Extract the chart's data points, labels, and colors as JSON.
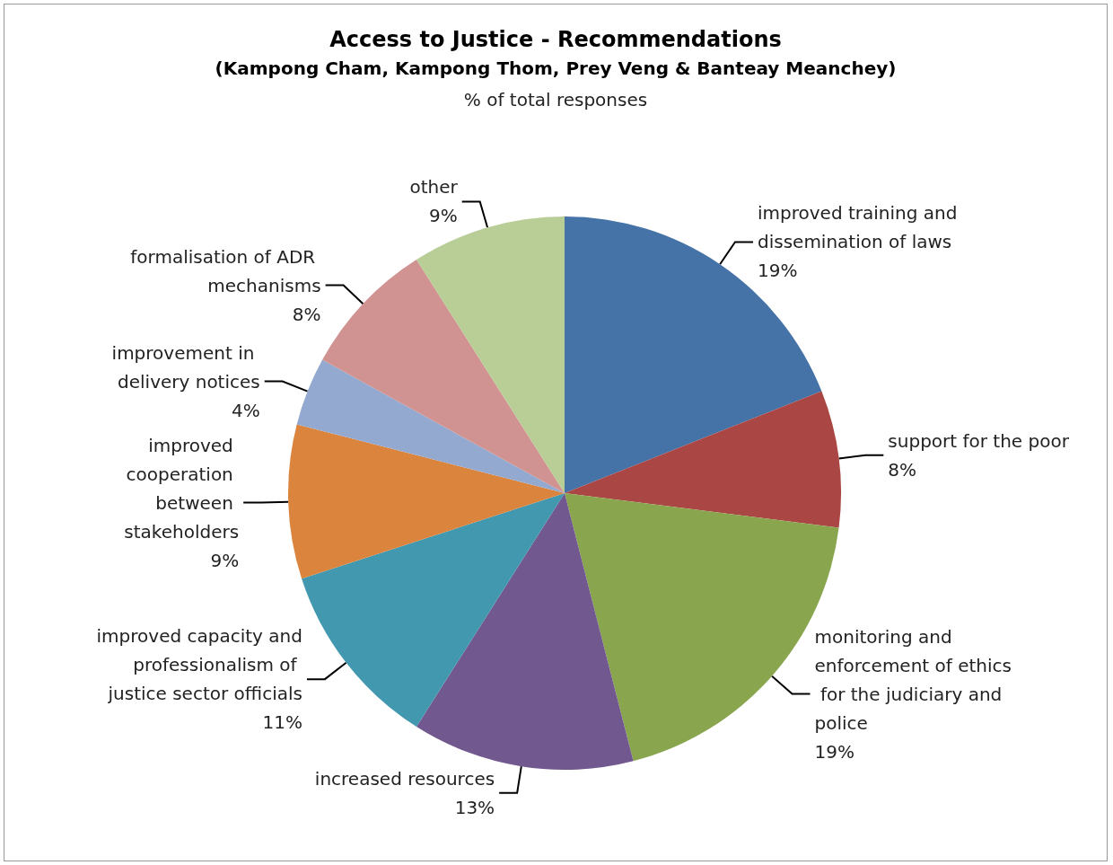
{
  "chart_data": {
    "type": "pie",
    "title": "Access to Justice - Recommendations",
    "subtitle": "(Kampong Cham, Kampong Thom, Prey Veng & Banteay Meanchey)",
    "annotations": [
      "% of total responses"
    ],
    "categories": [
      "improved training and dissemination of laws",
      "support for the poor",
      "monitoring and enforcement of ethics for the judiciary and police",
      "increased resources",
      "improved capacity and professionalism of justice sector officials",
      "improved cooperation between stakeholders",
      "improvement in delivery notices",
      "formalisation of ADR mechanisms",
      "other"
    ],
    "values": [
      19,
      8,
      19,
      13,
      11,
      9,
      4,
      8,
      9
    ],
    "value_labels": [
      "19%",
      "8%",
      "19%",
      "13%",
      "11%",
      "9%",
      "4%",
      "8%",
      "9%"
    ],
    "colors": [
      "#4572a7",
      "#aa4643",
      "#89a54e",
      "#71588f",
      "#4198af",
      "#db843d",
      "#93a9cf",
      "#d19392",
      "#b9cd96"
    ],
    "legend": false
  }
}
